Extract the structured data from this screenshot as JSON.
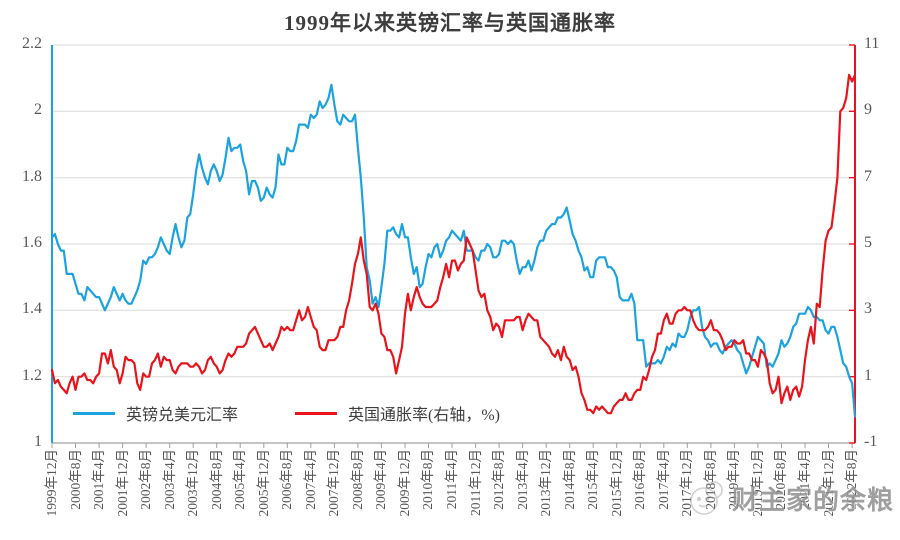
{
  "title": "1999年以来英镑汇率与英国通胀率",
  "legend": [
    {
      "label": "英镑兑美元汇率",
      "color": "#1CA2DE"
    },
    {
      "label": "英国通胀率(右轴，%)",
      "color": "#E8141C"
    }
  ],
  "watermark": {
    "text": "财主家的余粮",
    "logo": "smiley-mascot-logo"
  },
  "colors": {
    "blue_series": "#1CA2DE",
    "red_series": "#E8141C",
    "gridline": "#D9D9D9",
    "bottom_axis": "#A0A0A0",
    "axis_text": "#595959",
    "title_text": "#3d3d3d"
  },
  "chart_data": {
    "type": "line",
    "title": "1999年以来英镑汇率与英国通胀率",
    "x_unit": "month",
    "x_start": "1999-12",
    "x_end": "2022-09",
    "grid": true,
    "legend_position": "bottom-left-inside",
    "left_axis": {
      "min": 1,
      "max": 2.2,
      "tick_values": [
        2.2,
        2,
        1.8,
        1.6,
        1.4,
        1.2,
        1
      ],
      "tick_labels": [
        "2.2",
        "2",
        "1.8",
        "1.6",
        "1.4",
        "1.2",
        "1"
      ],
      "color": "#1CA2DE"
    },
    "right_axis": {
      "min": -1,
      "max": 11,
      "tick_values": [
        11,
        9,
        7,
        5,
        3,
        1,
        -1
      ],
      "tick_labels": [
        "11",
        "9",
        "7",
        "5",
        "3",
        "1",
        "-1"
      ],
      "color": "#E8141C"
    },
    "x_tick_every": 8,
    "x_tick_labels": [
      "1999年12月",
      "2000年8月",
      "2001年4月",
      "2001年12月",
      "2002年8月",
      "2003年4月",
      "2003年12月",
      "2004年8月",
      "2005年4月",
      "2005年12月",
      "2006年8月",
      "2007年4月",
      "2007年12月",
      "2008年8月",
      "2009年4月",
      "2009年12月",
      "2010年8月",
      "2011年4月",
      "2011年12月",
      "2012年8月",
      "2013年4月",
      "2013年12月",
      "2014年8月",
      "2015年4月",
      "2015年12月",
      "2016年8月",
      "2017年4月",
      "2017年12月",
      "2018年8月",
      "2019年4月",
      "2019年12月",
      "2020年8月",
      "2021年4月",
      "2021年12月",
      "2022年8月"
    ],
    "series": [
      {
        "name": "英镑兑美元汇率",
        "axis": "left",
        "color": "#1CA2DE",
        "values": [
          1.62,
          1.63,
          1.6,
          1.58,
          1.58,
          1.51,
          1.51,
          1.51,
          1.48,
          1.45,
          1.45,
          1.43,
          1.47,
          1.46,
          1.45,
          1.44,
          1.44,
          1.42,
          1.4,
          1.42,
          1.44,
          1.47,
          1.45,
          1.43,
          1.45,
          1.43,
          1.42,
          1.42,
          1.44,
          1.46,
          1.49,
          1.55,
          1.54,
          1.56,
          1.56,
          1.57,
          1.59,
          1.62,
          1.6,
          1.58,
          1.57,
          1.62,
          1.66,
          1.62,
          1.59,
          1.61,
          1.68,
          1.69,
          1.75,
          1.82,
          1.87,
          1.83,
          1.8,
          1.78,
          1.82,
          1.84,
          1.82,
          1.79,
          1.81,
          1.86,
          1.92,
          1.88,
          1.89,
          1.89,
          1.9,
          1.85,
          1.82,
          1.75,
          1.79,
          1.79,
          1.77,
          1.73,
          1.74,
          1.77,
          1.75,
          1.74,
          1.77,
          1.87,
          1.84,
          1.84,
          1.89,
          1.88,
          1.88,
          1.91,
          1.96,
          1.96,
          1.96,
          1.95,
          1.99,
          1.98,
          1.99,
          2.03,
          2.01,
          2.02,
          2.04,
          2.08,
          2.02,
          1.97,
          1.96,
          1.99,
          1.98,
          1.97,
          1.97,
          1.99,
          1.89,
          1.8,
          1.68,
          1.53,
          1.49,
          1.42,
          1.44,
          1.41,
          1.47,
          1.54,
          1.64,
          1.64,
          1.65,
          1.63,
          1.62,
          1.66,
          1.62,
          1.62,
          1.56,
          1.51,
          1.53,
          1.47,
          1.48,
          1.53,
          1.57,
          1.56,
          1.59,
          1.6,
          1.56,
          1.58,
          1.61,
          1.62,
          1.64,
          1.63,
          1.62,
          1.61,
          1.64,
          1.58,
          1.58,
          1.58,
          1.56,
          1.55,
          1.58,
          1.58,
          1.6,
          1.59,
          1.56,
          1.56,
          1.57,
          1.61,
          1.61,
          1.6,
          1.61,
          1.6,
          1.55,
          1.51,
          1.53,
          1.53,
          1.55,
          1.52,
          1.55,
          1.59,
          1.61,
          1.61,
          1.64,
          1.65,
          1.66,
          1.66,
          1.68,
          1.68,
          1.69,
          1.71,
          1.67,
          1.63,
          1.61,
          1.58,
          1.56,
          1.52,
          1.53,
          1.5,
          1.5,
          1.55,
          1.56,
          1.56,
          1.56,
          1.53,
          1.53,
          1.52,
          1.5,
          1.44,
          1.43,
          1.43,
          1.43,
          1.45,
          1.42,
          1.31,
          1.31,
          1.31,
          1.23,
          1.24,
          1.24,
          1.24,
          1.25,
          1.24,
          1.26,
          1.29,
          1.28,
          1.3,
          1.29,
          1.33,
          1.32,
          1.32,
          1.34,
          1.38,
          1.4,
          1.4,
          1.41,
          1.35,
          1.32,
          1.31,
          1.29,
          1.3,
          1.3,
          1.28,
          1.27,
          1.29,
          1.3,
          1.31,
          1.3,
          1.28,
          1.27,
          1.24,
          1.21,
          1.23,
          1.26,
          1.29,
          1.32,
          1.31,
          1.3,
          1.23,
          1.24,
          1.23,
          1.25,
          1.27,
          1.31,
          1.29,
          1.3,
          1.32,
          1.35,
          1.36,
          1.39,
          1.39,
          1.39,
          1.41,
          1.4,
          1.38,
          1.38,
          1.37,
          1.37,
          1.34,
          1.33,
          1.35,
          1.35,
          1.32,
          1.28,
          1.24,
          1.23,
          1.2,
          1.18,
          1.08
        ]
      },
      {
        "name": "英国通胀率(右轴，%)",
        "axis": "right",
        "color": "#E8141C",
        "values": [
          1.2,
          0.8,
          0.9,
          0.7,
          0.6,
          0.5,
          0.8,
          1.0,
          0.6,
          1.0,
          1.0,
          1.1,
          0.9,
          0.9,
          0.8,
          1.0,
          1.1,
          1.7,
          1.7,
          1.4,
          1.8,
          1.3,
          1.2,
          0.8,
          1.1,
          1.6,
          1.5,
          1.5,
          1.4,
          0.8,
          0.6,
          1.1,
          1.0,
          1.0,
          1.4,
          1.5,
          1.7,
          1.3,
          1.6,
          1.5,
          1.5,
          1.2,
          1.1,
          1.3,
          1.4,
          1.4,
          1.4,
          1.3,
          1.3,
          1.4,
          1.3,
          1.1,
          1.2,
          1.5,
          1.6,
          1.4,
          1.3,
          1.1,
          1.2,
          1.5,
          1.7,
          1.6,
          1.7,
          1.9,
          1.9,
          1.9,
          2.0,
          2.3,
          2.4,
          2.5,
          2.3,
          2.1,
          1.9,
          1.9,
          2.0,
          1.8,
          2.0,
          2.2,
          2.5,
          2.4,
          2.5,
          2.4,
          2.4,
          2.7,
          3.0,
          2.7,
          2.8,
          3.1,
          2.8,
          2.5,
          2.4,
          1.9,
          1.8,
          1.8,
          2.1,
          2.1,
          2.1,
          2.2,
          2.5,
          2.5,
          3.0,
          3.3,
          3.8,
          4.4,
          4.7,
          5.2,
          4.5,
          4.1,
          3.1,
          3.0,
          3.2,
          2.9,
          2.3,
          2.2,
          1.8,
          1.8,
          1.6,
          1.1,
          1.5,
          1.9,
          2.9,
          3.5,
          3.0,
          3.4,
          3.7,
          3.4,
          3.2,
          3.1,
          3.1,
          3.1,
          3.2,
          3.3,
          3.7,
          4.0,
          4.4,
          4.0,
          4.5,
          4.5,
          4.2,
          4.4,
          4.5,
          5.2,
          5.0,
          4.8,
          4.2,
          3.6,
          3.4,
          3.5,
          3.0,
          2.8,
          2.4,
          2.6,
          2.5,
          2.2,
          2.7,
          2.7,
          2.7,
          2.7,
          2.8,
          2.8,
          2.4,
          2.7,
          2.9,
          2.8,
          2.7,
          2.7,
          2.2,
          2.1,
          2.0,
          1.9,
          1.7,
          1.6,
          1.8,
          1.5,
          1.9,
          1.6,
          1.5,
          1.2,
          1.3,
          1.0,
          0.5,
          0.3,
          0.0,
          0.0,
          -0.1,
          0.1,
          0.0,
          0.1,
          0.0,
          -0.1,
          -0.1,
          0.1,
          0.2,
          0.3,
          0.3,
          0.5,
          0.3,
          0.3,
          0.5,
          0.6,
          0.6,
          1.0,
          0.9,
          1.2,
          1.6,
          1.8,
          2.3,
          2.3,
          2.7,
          2.9,
          2.6,
          2.6,
          2.9,
          3.0,
          3.0,
          3.1,
          3.0,
          3.0,
          2.7,
          2.5,
          2.4,
          2.4,
          2.4,
          2.5,
          2.7,
          2.4,
          2.4,
          2.3,
          2.1,
          1.8,
          1.9,
          1.9,
          2.1,
          2.0,
          2.0,
          2.1,
          1.7,
          1.7,
          1.5,
          1.5,
          1.3,
          1.8,
          1.7,
          1.5,
          0.8,
          0.5,
          0.6,
          1.0,
          0.2,
          0.5,
          0.7,
          0.3,
          0.6,
          0.7,
          0.4,
          0.7,
          1.5,
          2.1,
          2.5,
          2.0,
          3.2,
          3.1,
          4.2,
          5.1,
          5.4,
          5.5,
          6.2,
          7.0,
          9.0,
          9.1,
          9.4,
          10.1,
          9.9,
          10.1
        ]
      }
    ]
  }
}
